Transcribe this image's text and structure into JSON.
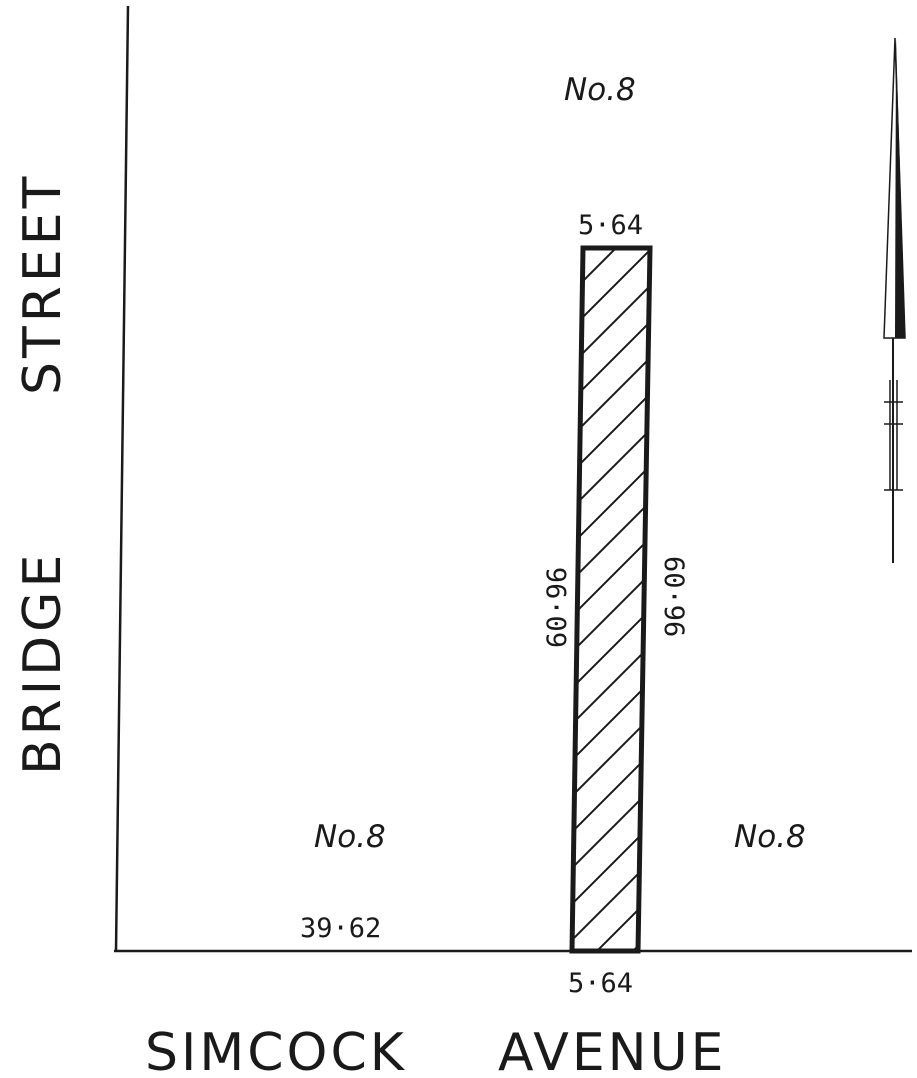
{
  "streets": {
    "bridge": "BRIDGE",
    "street": "STREET",
    "simcock": "SIMCOCK",
    "avenue": "AVENUE"
  },
  "lots": {
    "top": "No.8",
    "bottom_left": "No.8",
    "bottom_right": "No.8"
  },
  "dimensions": {
    "parcel_top": "5·64",
    "parcel_bottom": "5·64",
    "parcel_left": "60·96",
    "parcel_right": "60·96",
    "frontage": "39·62"
  },
  "colors": {
    "ink": "#1a1a1a",
    "paper": "#ffffff"
  },
  "icons": {
    "north_arrow": "north-arrow-icon"
  }
}
